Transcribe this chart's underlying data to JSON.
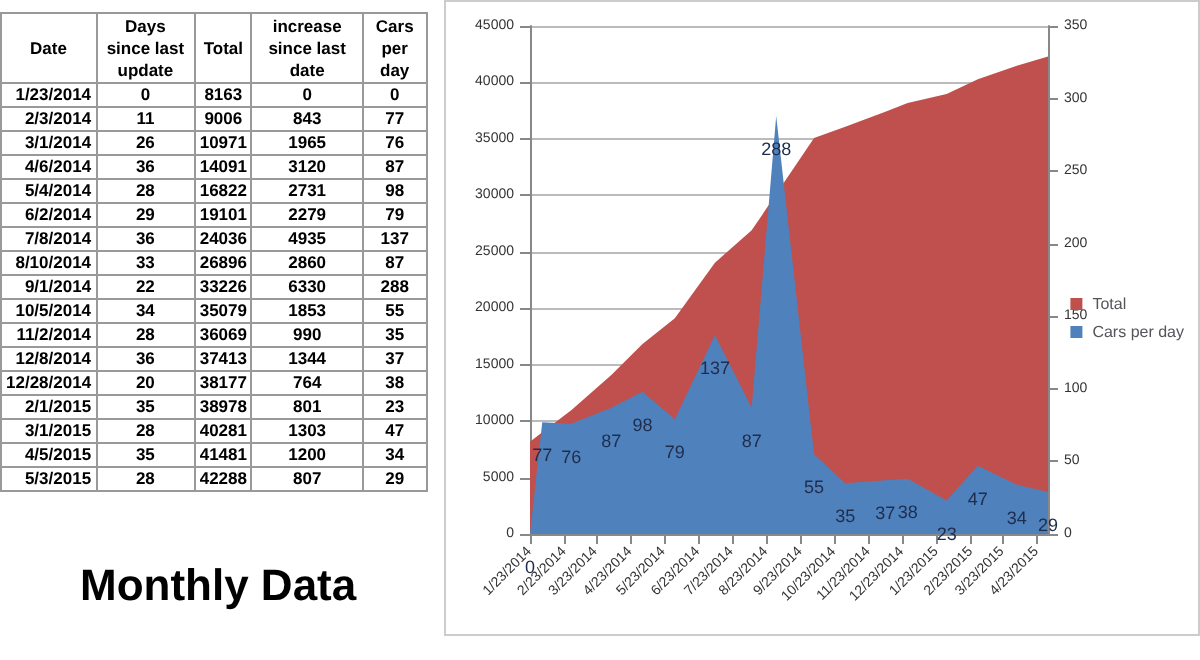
{
  "chart_data": [
    {
      "type": "other",
      "title": "Monthly Data",
      "xlabel": "Date",
      "data_labels": true,
      "categories": [
        "1/23/2014",
        "2/3/2014",
        "3/1/2014",
        "4/6/2014",
        "5/4/2014",
        "6/2/2014",
        "7/8/2014",
        "8/10/2014",
        "9/1/2014",
        "10/5/2014",
        "11/2/2014",
        "12/8/2014",
        "12/28/2014",
        "2/1/2015",
        "3/1/2015",
        "4/5/2015",
        "5/3/2015"
      ],
      "series": [
        {
          "name": "Days since last update",
          "values": [
            0,
            11,
            26,
            36,
            28,
            29,
            36,
            33,
            22,
            34,
            28,
            36,
            20,
            35,
            28,
            35,
            28
          ]
        },
        {
          "name": "Total",
          "values": [
            8163,
            9006,
            10971,
            14091,
            16822,
            19101,
            24036,
            26896,
            33226,
            35079,
            36069,
            37413,
            38177,
            38978,
            40281,
            41481,
            42288
          ]
        },
        {
          "name": "increase since last date",
          "values": [
            0,
            843,
            1965,
            3120,
            2731,
            2279,
            4935,
            2860,
            6330,
            1853,
            990,
            1344,
            764,
            801,
            1303,
            1200,
            807
          ]
        },
        {
          "name": "Cars per day",
          "values": [
            0,
            77,
            76,
            87,
            98,
            79,
            137,
            87,
            288,
            55,
            35,
            37,
            38,
            23,
            47,
            34,
            29
          ]
        }
      ]
    },
    {
      "type": "area",
      "x": [
        "2014-01-23",
        "2014-02-03",
        "2014-03-01",
        "2014-04-06",
        "2014-05-04",
        "2014-06-02",
        "2014-07-08",
        "2014-08-10",
        "2014-09-01",
        "2014-10-05",
        "2014-11-02",
        "2014-12-08",
        "2014-12-28",
        "2015-02-01",
        "2015-03-01",
        "2015-04-05",
        "2015-05-03"
      ],
      "series": [
        {
          "name": "Total",
          "color": "#c0504d",
          "values": [
            8163,
            9006,
            10971,
            14091,
            16822,
            19101,
            24036,
            26896,
            null,
            35079,
            36069,
            37413,
            38177,
            38978,
            40281,
            41481,
            42288
          ]
        },
        {
          "name": "Cars per day",
          "color": "#4f81bd",
          "axis": "y2",
          "values": [
            0,
            77,
            76,
            87,
            98,
            79,
            137,
            87,
            288,
            55,
            35,
            37,
            38,
            23,
            47,
            34,
            29
          ],
          "value_labels": [
            "0",
            "77",
            "76",
            "87",
            "98",
            "79",
            "137",
            "87",
            "288",
            "55",
            "35",
            "37",
            "38",
            "23",
            "47",
            "34",
            "29"
          ]
        }
      ],
      "xlim": [
        "2014-01-23",
        "2015-05-03"
      ],
      "xticks": [
        {
          "value": "2014-01-23",
          "label": "1/23/2014"
        },
        {
          "value": "2014-02-23",
          "label": "2/23/2014"
        },
        {
          "value": "2014-03-23",
          "label": "3/23/2014"
        },
        {
          "value": "2014-04-23",
          "label": "4/23/2014"
        },
        {
          "value": "2014-05-23",
          "label": "5/23/2014"
        },
        {
          "value": "2014-06-23",
          "label": "6/23/2014"
        },
        {
          "value": "2014-07-23",
          "label": "7/23/2014"
        },
        {
          "value": "2014-08-23",
          "label": "8/23/2014"
        },
        {
          "value": "2014-09-23",
          "label": "9/23/2014"
        },
        {
          "value": "2014-10-23",
          "label": "10/23/2014"
        },
        {
          "value": "2014-11-23",
          "label": "11/23/2014"
        },
        {
          "value": "2014-12-23",
          "label": "12/23/2014"
        },
        {
          "value": "2015-01-23",
          "label": "1/23/2015"
        },
        {
          "value": "2015-02-23",
          "label": "2/23/2015"
        },
        {
          "value": "2015-03-23",
          "label": "3/23/2015"
        },
        {
          "value": "2015-04-23",
          "label": "4/23/2015"
        }
      ],
      "ylim": [
        0,
        45000
      ],
      "yticks": [
        0,
        5000,
        10000,
        15000,
        20000,
        25000,
        30000,
        35000,
        40000,
        45000
      ],
      "y2lim": [
        0,
        350
      ],
      "y2ticks": [
        0,
        50,
        100,
        150,
        200,
        250,
        300,
        350
      ],
      "grid": "y",
      "legend": "right"
    }
  ]
}
